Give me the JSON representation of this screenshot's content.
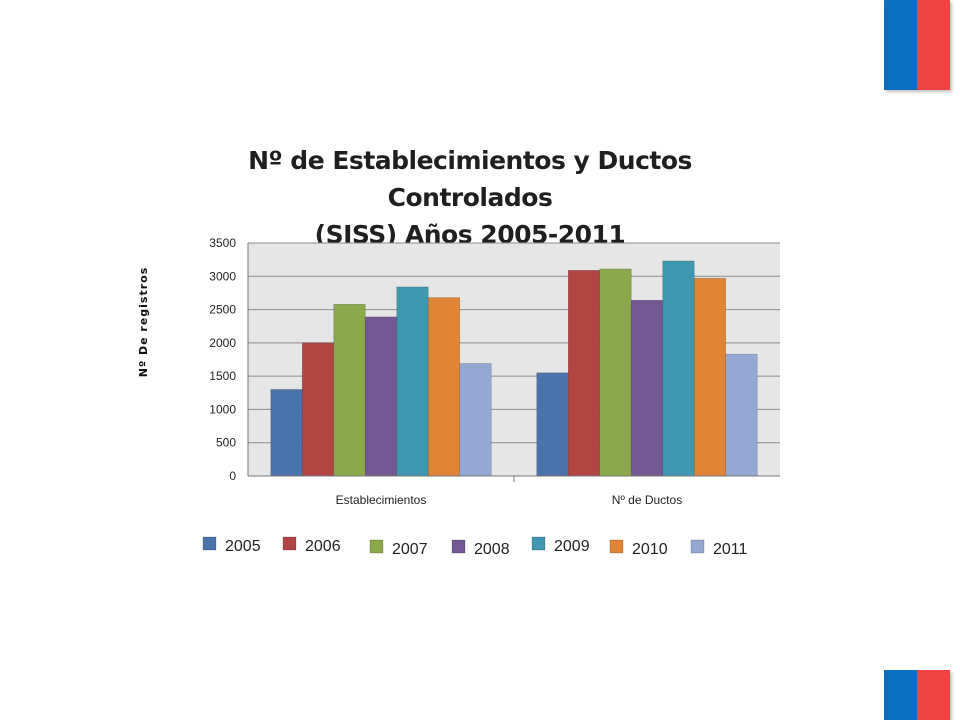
{
  "chart_data": {
    "type": "bar",
    "title_lines": [
      "Nº de Establecimientos y Ductos Controlados",
      "(SISS) Años 2005-2011"
    ],
    "xlabel": "",
    "ylabel": "Nº  De registros",
    "categories": [
      "Establecimientos",
      "Nº de  Ductos"
    ],
    "ylim": [
      0,
      3500
    ],
    "yticks": [
      0,
      500,
      1000,
      1500,
      2000,
      2500,
      3000,
      3500
    ],
    "grid": true,
    "legend_position": "bottom",
    "series": [
      {
        "name": "2005",
        "color": "#4a72ab",
        "values": [
          1300,
          1550
        ]
      },
      {
        "name": "2006",
        "color": "#b04544",
        "values": [
          2000,
          3090
        ]
      },
      {
        "name": "2007",
        "color": "#8aa94b",
        "values": [
          2580,
          3110
        ]
      },
      {
        "name": "2008",
        "color": "#735893",
        "values": [
          2390,
          2640
        ]
      },
      {
        "name": "2009",
        "color": "#3f98b0",
        "values": [
          2840,
          3230
        ]
      },
      {
        "name": "2010",
        "color": "#e08436",
        "values": [
          2680,
          2970
        ]
      },
      {
        "name": "2011",
        "color": "#93a9d4",
        "values": [
          1690,
          1830
        ]
      }
    ]
  },
  "flag_colors": {
    "blue": "#0a6fbf",
    "red": "#ef4444"
  }
}
